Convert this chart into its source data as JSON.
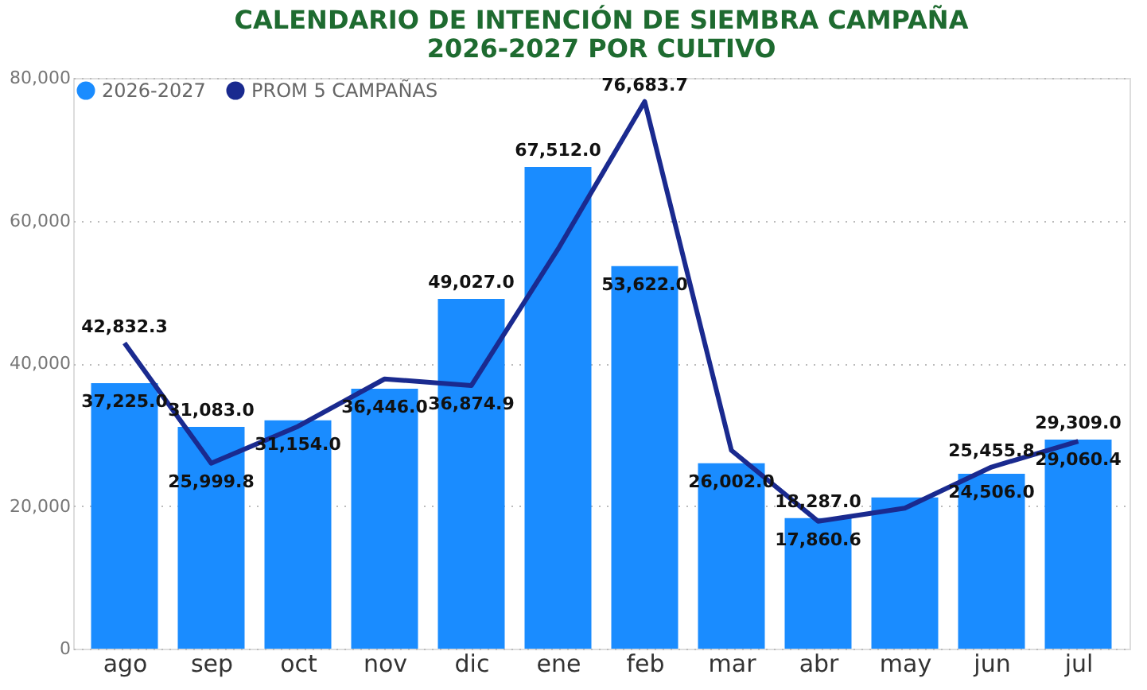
{
  "chart_data": {
    "type": "bar",
    "title": "CALENDARIO DE INTENCIÓN DE SIEMBRA CAMPAÑA 2026-2027 POR CULTIVO",
    "categories": [
      "ago",
      "sep",
      "oct",
      "nov",
      "dic",
      "ene",
      "feb",
      "mar",
      "abr",
      "may",
      "jun",
      "jul"
    ],
    "series": [
      {
        "name": "2026-2027",
        "color": "#1a8cff",
        "values": [
          37225.0,
          31083.0,
          32000,
          36446.0,
          49027.0,
          67512.0,
          53622.0,
          26002.0,
          18287.0,
          21200,
          24506.0,
          29309.0
        ],
        "value_labels": [
          "37,225.0",
          "31,083.0",
          null,
          "36,446.0",
          "49,027.0",
          "67,512.0",
          "53,622.0",
          "26,002.0",
          "18,287.0",
          null,
          "24,506.0",
          "29,309.0"
        ]
      },
      {
        "name": "PROM 5 CAMPAÑAS",
        "type": "line",
        "color": "#1a2a8f",
        "values": [
          42832.3,
          25999.8,
          31154.0,
          37800,
          36874.9,
          56000,
          76683.7,
          27800,
          17860.6,
          19700,
          25455.8,
          29060.4
        ],
        "value_labels": [
          "42,832.3",
          "25,999.8",
          "31,154.0",
          null,
          "36,874.9",
          null,
          "76,683.7",
          null,
          "17,860.6",
          null,
          "25,455.8",
          "29,060.4"
        ]
      }
    ],
    "ylim": [
      0,
      80000
    ],
    "yticks": [
      {
        "value": 0,
        "label": "0"
      },
      {
        "value": 20000,
        "label": "20,000"
      },
      {
        "value": 40000,
        "label": "40,000"
      },
      {
        "value": 60000,
        "label": "60,000"
      },
      {
        "value": 80000,
        "label": "80,000"
      }
    ],
    "grid": "y",
    "legend": "top left"
  }
}
